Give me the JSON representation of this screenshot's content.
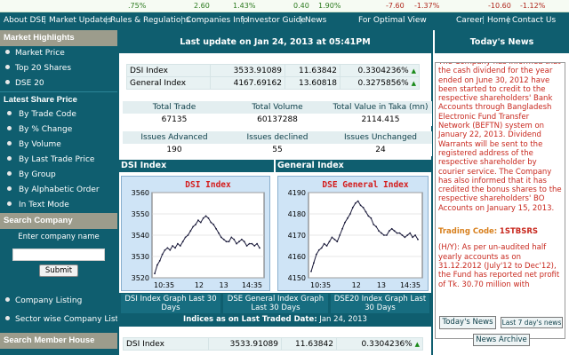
{
  "ticker": {
    "items": [
      {
        "text": ".75%",
        "neg": false
      },
      {
        "text": "2.60",
        "neg": false
      },
      {
        "text": "1.43%",
        "neg": false
      },
      {
        "text": "0.40",
        "neg": false
      },
      {
        "text": "1.90%",
        "neg": false
      },
      {
        "text": "-7.60",
        "neg": true
      },
      {
        "text": "-1.37%",
        "neg": true
      },
      {
        "text": "-10.60",
        "neg": true
      },
      {
        "text": "-1.12%",
        "neg": true
      }
    ]
  },
  "topnav": {
    "items": [
      "About DSE",
      "Market Updates",
      "Rules & Regulations",
      "Companies Info",
      "Investor Guide",
      "News",
      "For Optimal View",
      "Career",
      "Home",
      "Contact Us"
    ]
  },
  "sidebar": {
    "market_highlights": "Market Highlights",
    "highlight_items": [
      "Market Price",
      "Top 20 Shares",
      "DSE 20"
    ],
    "latest_share_price": "Latest Share Price",
    "price_items": [
      "By Trade Code",
      "By % Change",
      "By Volume",
      "By Last Trade Price",
      "By Group",
      "By Alphabetic Order",
      "In Text Mode"
    ],
    "search_company": "Search Company",
    "search_label": "Enter company name",
    "search_value": "",
    "submit_label": "Submit",
    "list_items": [
      "Company Listing",
      "Sector wise Company List"
    ],
    "search_member": "Search Member House"
  },
  "main": {
    "header": "Last update on Jan 24, 2013 at 05:41PM",
    "indices": [
      {
        "name": "DSI Index",
        "value": "3533.91089",
        "change": "11.63842",
        "pct": "0.3304236%"
      },
      {
        "name": "General Index",
        "value": "4167.69162",
        "change": "13.60818",
        "pct": "0.3275856%"
      }
    ],
    "trade_stats": {
      "headers": [
        "Total Trade",
        "Total Volume",
        "Total Value in Taka (mn)"
      ],
      "values": [
        "67135",
        "60137288",
        "2114.415"
      ]
    },
    "issue_stats": {
      "headers": [
        "Issues Advanced",
        "Issues declined",
        "Issues Unchanged"
      ],
      "values": [
        "190",
        "55",
        "24"
      ]
    },
    "dsi_chart_label": "DSI Index",
    "gen_chart_label": "General Index",
    "graph_links": [
      "DSI Index Graph Last 30 Days",
      "DSE General Index Graph Last 30 Days",
      "DSE20 Index Graph Last 30 Days"
    ],
    "indices_as_on_label": "Indices as on Last Traded Date:",
    "indices_as_on_date": "Jan 24, 2013",
    "bottom_index": {
      "name": "DSI Index",
      "value": "3533.91089",
      "change": "11.63842",
      "pct": "0.3304236%"
    }
  },
  "chart_data": [
    {
      "type": "line",
      "title": "DSI Index",
      "xlabel": "",
      "ylabel": "",
      "x_ticks": [
        "10:35",
        "12",
        "13",
        "14:35"
      ],
      "ylim": [
        3520,
        3560
      ],
      "y_ticks": [
        3520,
        3530,
        3540,
        3550,
        3560
      ],
      "grid": true,
      "color": "#1a1a3a",
      "values": [
        3522,
        3526,
        3528,
        3531,
        3533,
        3534,
        3533,
        3535,
        3534,
        3536,
        3535,
        3537,
        3539,
        3540,
        3542,
        3544,
        3545,
        3547,
        3546,
        3548,
        3549,
        3548,
        3546,
        3545,
        3543,
        3541,
        3539,
        3538,
        3537,
        3537,
        3539,
        3538,
        3536,
        3537,
        3538,
        3537,
        3535,
        3536,
        3536,
        3535,
        3536,
        3534
      ]
    },
    {
      "type": "line",
      "title": "DSE General Index",
      "xlabel": "",
      "ylabel": "",
      "x_ticks": [
        "10:35",
        "12",
        "13",
        "14:35"
      ],
      "ylim": [
        4150,
        4190
      ],
      "y_ticks": [
        4150,
        4160,
        4170,
        4180,
        4190
      ],
      "grid": true,
      "color": "#1a1a3a",
      "values": [
        4153,
        4157,
        4161,
        4163,
        4164,
        4166,
        4165,
        4167,
        4169,
        4168,
        4167,
        4170,
        4173,
        4176,
        4178,
        4180,
        4183,
        4185,
        4186,
        4184,
        4183,
        4181,
        4179,
        4178,
        4175,
        4174,
        4172,
        4171,
        4170,
        4170,
        4172,
        4173,
        4172,
        4171,
        4171,
        4170,
        4169,
        4170,
        4171,
        4169,
        4170,
        4168
      ]
    }
  ],
  "right": {
    "header": "Today's News",
    "news_intro": "The Company has informed that the cash dividend for the year ended on June 30, 2012 have been started to credit to the respective shareholders' Bank Accounts through Bangladesh Electronic Fund Transfer Network (BEFTN) system on January 22, 2013. Dividend Warrants will be sent to the registered address of the respective shareholder by courier service. The Company has also informed that it has credited the bonus shares to the respective shareholders' BO Accounts on January 15, 2013.",
    "trading_code_label": "Trading Code:",
    "trading_code_value": "1STBSRS",
    "news_second": "(H/Y): As per un-audited half yearly accounts as on 31.12.2012 (July'12 to Dec'12), the Fund has reported net profit of Tk. 30.70 million with",
    "todays_news_btn": "Today's News",
    "last7_btn": "Last 7 day's news",
    "archive_btn": "News Archive"
  }
}
